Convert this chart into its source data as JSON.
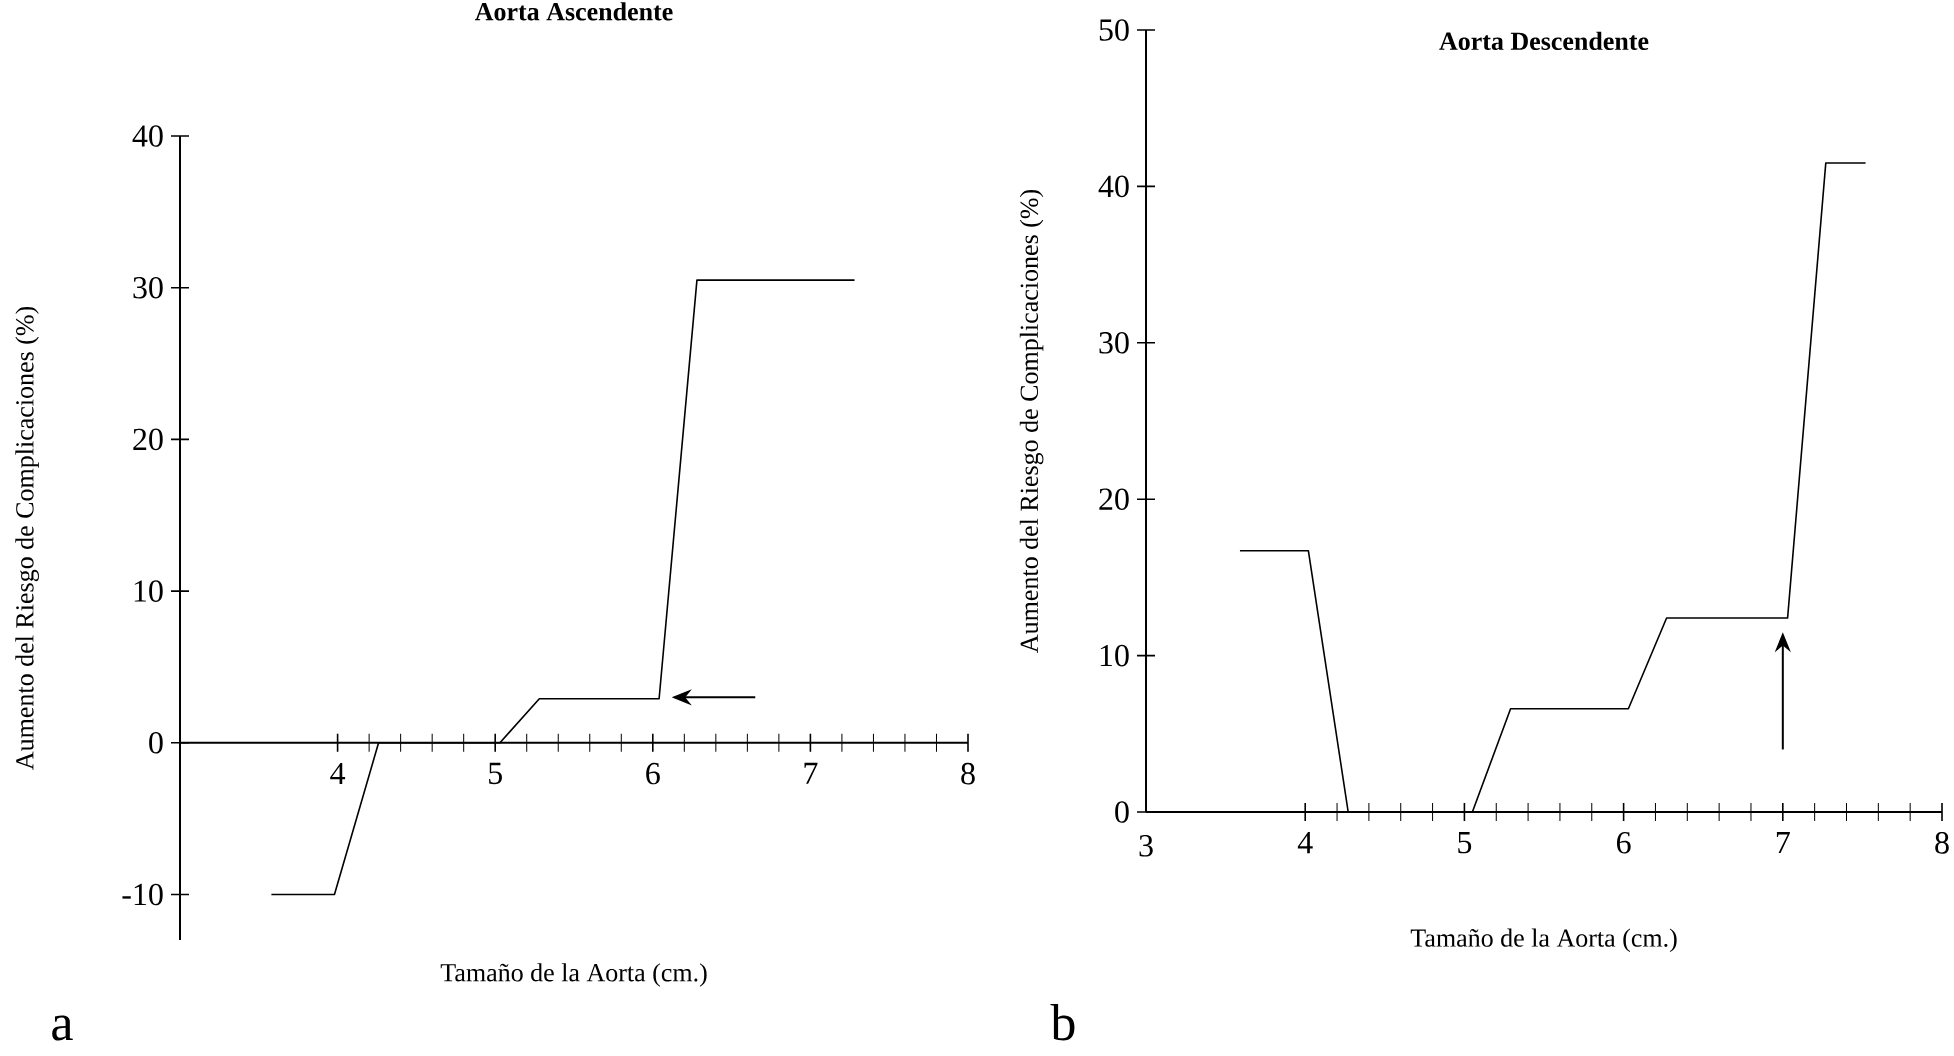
{
  "chart_data": [
    {
      "type": "line",
      "title": "Aorta Ascendente",
      "xlabel": "Tamaño de la Aorta (cm.)",
      "ylabel": "Aumento del Riesgo de Complicaciones (%)",
      "annotations": [
        "a"
      ],
      "xlim": [
        3,
        8
      ],
      "ylim": [
        -13,
        40
      ],
      "xticks": [
        4,
        5,
        6,
        7,
        8
      ],
      "yticks": [
        -10,
        0,
        10,
        20,
        30,
        40
      ],
      "series": [
        {
          "color": "#000000",
          "x": [
            3.58,
            3.98,
            4.26,
            5.03,
            5.28,
            6.04,
            6.28,
            7.28
          ],
          "values": [
            -10,
            -10,
            0,
            0,
            2.9,
            2.9,
            30.5,
            30.5
          ]
        }
      ]
    },
    {
      "type": "line",
      "title": "Aorta Descendente",
      "xlabel": "Tamaño de la Aorta (cm.)",
      "ylabel": "Aumento del Riesgo de Complicaciones (%)",
      "annotations": [
        "b"
      ],
      "xlim": [
        3,
        8
      ],
      "ylim": [
        0,
        50
      ],
      "xticks": [
        3,
        4,
        5,
        6,
        7,
        8
      ],
      "yticks": [
        0,
        10,
        20,
        30,
        40,
        50
      ],
      "series": [
        {
          "color": "#000000",
          "x": [
            3.59,
            4.02,
            4.27,
            5.05,
            5.29,
            6.03,
            6.27,
            7.03,
            7.27,
            7.52
          ],
          "values": [
            16.7,
            16.7,
            0,
            0,
            6.6,
            6.6,
            12.4,
            12.4,
            41.5,
            41.5
          ]
        }
      ]
    }
  ]
}
